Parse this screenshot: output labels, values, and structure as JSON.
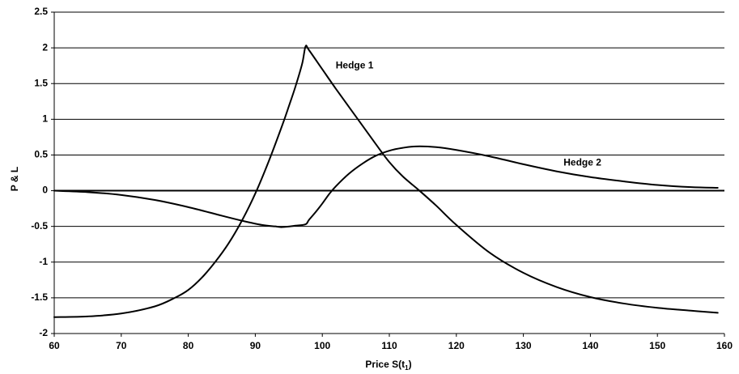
{
  "chart_data": {
    "type": "line",
    "title": "",
    "xlabel": "Price S(t",
    "xlabel_sub": "1",
    "xlabel_suffix": ")",
    "ylabel": "P & L",
    "xlim": [
      60,
      160
    ],
    "ylim": [
      -2,
      2.5
    ],
    "x_ticks": [
      60,
      70,
      80,
      90,
      100,
      110,
      120,
      130,
      140,
      150,
      160
    ],
    "y_ticks": [
      2.5,
      2,
      1.5,
      1,
      0.5,
      0,
      -0.5,
      -1,
      -1.5,
      -2
    ],
    "grid": "horizontal",
    "legend": "none",
    "line_color": "#000000",
    "series": [
      {
        "name": "Hedge 1",
        "x": [
          60,
          65,
          70,
          75,
          78,
          80,
          82,
          84,
          86,
          88,
          90,
          92,
          94,
          95,
          96,
          97,
          97.5,
          98,
          100,
          102,
          105,
          108,
          110,
          112,
          114.5,
          117,
          120,
          125,
          130,
          135,
          140,
          145,
          150,
          155,
          159
        ],
        "y": [
          -1.77,
          -1.76,
          -1.72,
          -1.62,
          -1.5,
          -1.39,
          -1.22,
          -1.0,
          -0.74,
          -0.42,
          -0.04,
          0.41,
          0.91,
          1.18,
          1.46,
          1.78,
          2.02,
          1.97,
          1.7,
          1.43,
          1.04,
          0.65,
          0.4,
          0.2,
          0.0,
          -0.21,
          -0.48,
          -0.87,
          -1.15,
          -1.35,
          -1.49,
          -1.58,
          -1.64,
          -1.68,
          -1.71
        ]
      },
      {
        "name": "Hedge 2",
        "x": [
          60,
          65,
          70,
          75,
          80,
          85,
          88,
          91,
          93,
          94,
          96,
          97.5,
          98,
          99,
          100,
          101,
          102,
          104,
          106,
          108,
          110,
          112,
          114,
          117,
          120,
          125,
          130,
          135,
          140,
          145,
          150,
          155,
          159
        ],
        "y": [
          0.0,
          -0.02,
          -0.06,
          -0.13,
          -0.23,
          -0.35,
          -0.42,
          -0.48,
          -0.5,
          -0.51,
          -0.49,
          -0.47,
          -0.41,
          -0.3,
          -0.18,
          -0.05,
          0.06,
          0.24,
          0.38,
          0.49,
          0.56,
          0.6,
          0.62,
          0.61,
          0.57,
          0.48,
          0.37,
          0.27,
          0.19,
          0.13,
          0.08,
          0.05,
          0.04
        ]
      }
    ],
    "annotations": [
      {
        "text": "Hedge 1",
        "x": 102,
        "y": 1.75
      },
      {
        "text": "Hedge 2",
        "x": 136,
        "y": 0.39
      }
    ]
  }
}
